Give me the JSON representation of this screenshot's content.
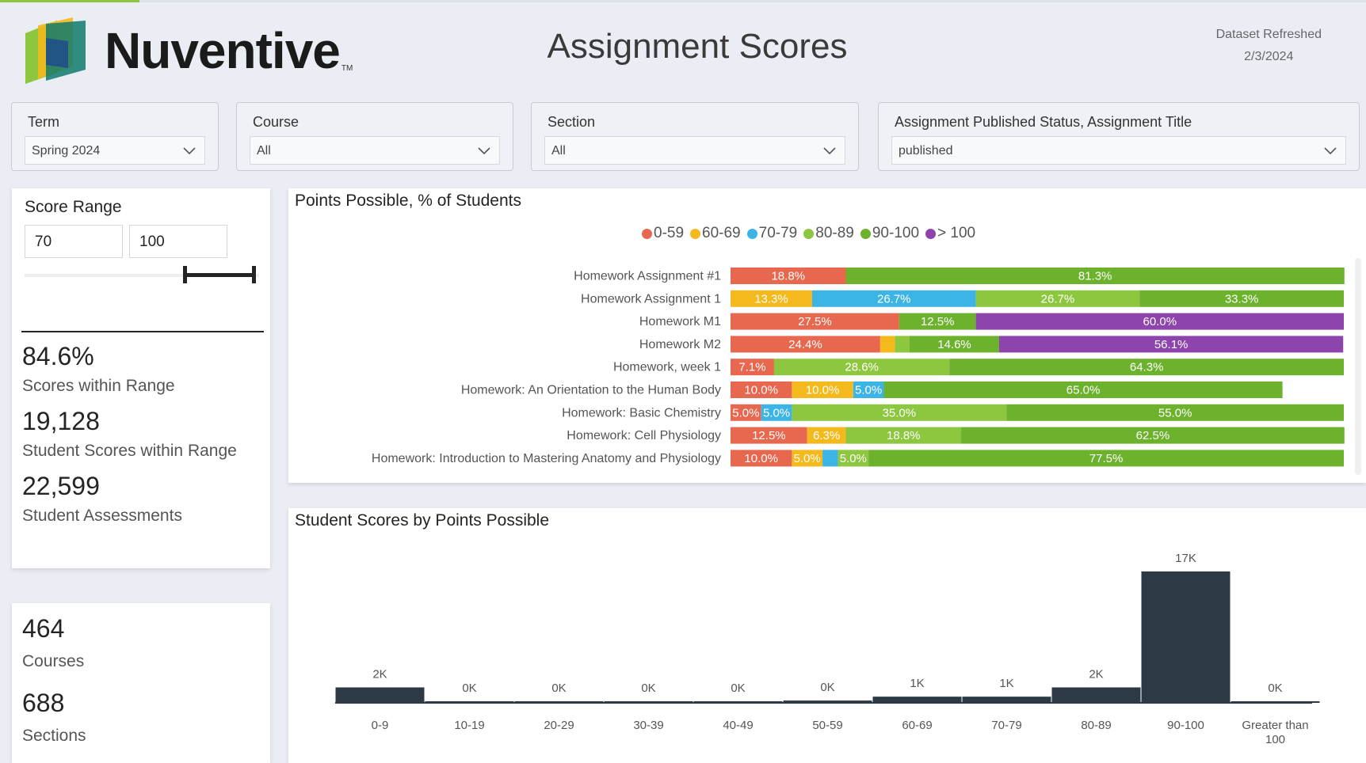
{
  "brand": {
    "name": "Nuventive",
    "tm": "TM"
  },
  "header": {
    "title": "Assignment Scores",
    "refresh_label": "Dataset Refreshed",
    "refresh_date": "2/3/2024"
  },
  "filters": {
    "term": {
      "label": "Term",
      "value": "Spring 2024"
    },
    "course": {
      "label": "Course",
      "value": "All"
    },
    "section": {
      "label": "Section",
      "value": "All"
    },
    "assignment": {
      "label": "Assignment Published Status, Assignment Title",
      "value": "published"
    }
  },
  "score_range": {
    "title": "Score Range",
    "min": "70",
    "max": "100",
    "slider_low_pct": 70,
    "slider_high_pct": 100
  },
  "kpis": {
    "pct_in_range": {
      "value": "84.6%",
      "label": "Scores within Range"
    },
    "scores_in_range": {
      "value": "19,128",
      "label": "Student Scores within Range"
    },
    "assessments": {
      "value": "22,599",
      "label": "Student Assessments"
    },
    "courses": {
      "value": "464",
      "label": "Courses"
    },
    "sections": {
      "value": "688",
      "label": "Sections"
    }
  },
  "colors": {
    "0-59": "#e8674f",
    "60-69": "#f4b91c",
    "70-79": "#3cb4e5",
    "80-89": "#8dc63f",
    "90-100": "#6cb22c",
    "> 100": "#8e44ad",
    "bar_dark": "#2d3a45"
  },
  "chart_data": [
    {
      "type": "bar",
      "orientation": "horizontal-stacked-100",
      "title": "Points Possible, % of Students",
      "legend": [
        "0-59",
        "60-69",
        "70-79",
        "80-89",
        "90-100",
        "> 100"
      ],
      "categories": [
        "Homework Assignment #1",
        "Homework Assignment 1",
        "Homework M1",
        "Homework M2",
        "Homework, week 1",
        "Homework: An Orientation to the Human Body",
        "Homework: Basic Chemistry",
        "Homework: Cell Physiology",
        "Homework: Introduction to Mastering Anatomy and Physiology"
      ],
      "series": [
        {
          "name": "0-59",
          "values": [
            18.8,
            0,
            27.5,
            24.4,
            7.1,
            10.0,
            5.0,
            12.5,
            10.0
          ]
        },
        {
          "name": "60-69",
          "values": [
            0,
            13.3,
            0,
            2.4,
            0,
            10.0,
            0,
            6.3,
            5.0
          ]
        },
        {
          "name": "70-79",
          "values": [
            0,
            26.7,
            0,
            0,
            0,
            5.0,
            5.0,
            0,
            2.5
          ]
        },
        {
          "name": "80-89",
          "values": [
            0,
            26.7,
            0,
            2.4,
            28.6,
            0,
            35.0,
            18.8,
            5.0
          ]
        },
        {
          "name": "90-100",
          "values": [
            81.3,
            33.3,
            12.5,
            14.6,
            64.3,
            65.0,
            55.0,
            62.5,
            77.5
          ]
        },
        {
          "name": "> 100",
          "values": [
            0,
            0,
            60.0,
            56.1,
            0,
            0,
            0,
            0,
            0
          ]
        }
      ]
    },
    {
      "type": "bar",
      "title": "Student Scores by Points Possible",
      "categories": [
        "0-9",
        "10-19",
        "20-29",
        "30-39",
        "40-49",
        "50-59",
        "60-69",
        "70-79",
        "80-89",
        "90-100",
        "Greater than 100"
      ],
      "values": [
        2000,
        100,
        100,
        100,
        100,
        300,
        800,
        800,
        2000,
        17000,
        100
      ],
      "data_labels": [
        "2K",
        "0K",
        "0K",
        "0K",
        "0K",
        "0K",
        "1K",
        "1K",
        "2K",
        "17K",
        "0K"
      ]
    }
  ]
}
